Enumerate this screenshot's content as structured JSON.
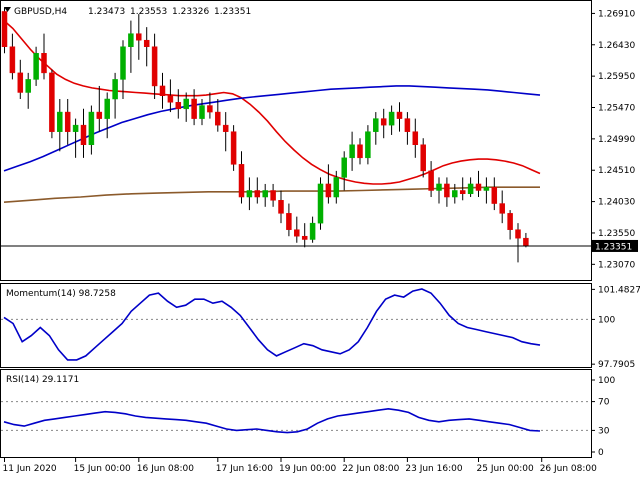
{
  "chart_data": {
    "type": "candlestick",
    "header": {
      "symbol": "GBPUSD,H4",
      "open": "1.23473",
      "high": "1.23553",
      "low": "1.23326",
      "close": "1.23351"
    },
    "price_axis": {
      "ticks": [
        "1.26910",
        "1.26430",
        "1.25950",
        "1.25470",
        "1.24990",
        "1.24510",
        "1.24030",
        "1.23550",
        "1.23070"
      ],
      "range": [
        1.2283,
        1.271
      ],
      "current_price_label": "1.23351",
      "current_price": 1.23351
    },
    "time_axis": {
      "labels": [
        "11 Jun 2020",
        "15 Jun 00:00",
        "16 Jun 08:00",
        "17 Jun 16:00",
        "19 Jun 00:00",
        "22 Jun 08:00",
        "23 Jun 16:00",
        "25 Jun 00:00",
        "26 Jun 08:00"
      ],
      "label_bar_index": [
        0,
        9,
        17,
        27,
        35,
        43,
        51,
        60,
        68
      ]
    },
    "candles": [
      [
        1.2694,
        1.27,
        1.263,
        1.264
      ],
      [
        1.264,
        1.266,
        1.259,
        1.26
      ],
      [
        1.26,
        1.262,
        1.256,
        1.257
      ],
      [
        1.257,
        1.26,
        1.2545,
        1.259
      ],
      [
        1.259,
        1.264,
        1.258,
        1.263
      ],
      [
        1.263,
        1.266,
        1.259,
        1.26
      ],
      [
        1.26,
        1.2605,
        1.25,
        1.251
      ],
      [
        1.251,
        1.256,
        1.248,
        1.254
      ],
      [
        1.254,
        1.256,
        1.249,
        1.251
      ],
      [
        1.251,
        1.253,
        1.247,
        1.252
      ],
      [
        1.252,
        1.2545,
        1.247,
        1.249
      ],
      [
        1.249,
        1.255,
        1.2475,
        1.254
      ],
      [
        1.254,
        1.258,
        1.251,
        1.253
      ],
      [
        1.253,
        1.257,
        1.25,
        1.256
      ],
      [
        1.256,
        1.26,
        1.253,
        1.259
      ],
      [
        1.259,
        1.265,
        1.256,
        1.264
      ],
      [
        1.264,
        1.268,
        1.26,
        1.266
      ],
      [
        1.266,
        1.269,
        1.262,
        1.265
      ],
      [
        1.265,
        1.267,
        1.261,
        1.264
      ],
      [
        1.264,
        1.266,
        1.256,
        1.258
      ],
      [
        1.258,
        1.26,
        1.2545,
        1.2565
      ],
      [
        1.2565,
        1.259,
        1.254,
        1.2555
      ],
      [
        1.2555,
        1.2575,
        1.253,
        1.2545
      ],
      [
        1.2545,
        1.257,
        1.2525,
        1.256
      ],
      [
        1.256,
        1.2575,
        1.252,
        1.253
      ],
      [
        1.253,
        1.256,
        1.252,
        1.255
      ],
      [
        1.255,
        1.257,
        1.253,
        1.254
      ],
      [
        1.254,
        1.256,
        1.251,
        1.252
      ],
      [
        1.252,
        1.254,
        1.248,
        1.251
      ],
      [
        1.251,
        1.252,
        1.245,
        1.246
      ],
      [
        1.246,
        1.248,
        1.24,
        1.241
      ],
      [
        1.241,
        1.244,
        1.239,
        1.242
      ],
      [
        1.242,
        1.244,
        1.24,
        1.241
      ],
      [
        1.241,
        1.243,
        1.2395,
        1.242
      ],
      [
        1.242,
        1.243,
        1.2395,
        1.2405
      ],
      [
        1.2405,
        1.242,
        1.237,
        1.2385
      ],
      [
        1.2385,
        1.24,
        1.235,
        1.236
      ],
      [
        1.236,
        1.238,
        1.234,
        1.235
      ],
      [
        1.235,
        1.237,
        1.2333,
        1.2345
      ],
      [
        1.2345,
        1.238,
        1.234,
        1.237
      ],
      [
        1.237,
        1.244,
        1.236,
        1.243
      ],
      [
        1.243,
        1.246,
        1.24,
        1.241
      ],
      [
        1.241,
        1.245,
        1.24,
        1.244
      ],
      [
        1.244,
        1.248,
        1.242,
        1.247
      ],
      [
        1.247,
        1.251,
        1.245,
        1.249
      ],
      [
        1.249,
        1.25,
        1.246,
        1.247
      ],
      [
        1.247,
        1.252,
        1.246,
        1.251
      ],
      [
        1.251,
        1.254,
        1.249,
        1.253
      ],
      [
        1.253,
        1.2545,
        1.25,
        1.252
      ],
      [
        1.252,
        1.255,
        1.2505,
        1.254
      ],
      [
        1.254,
        1.2555,
        1.251,
        1.253
      ],
      [
        1.253,
        1.254,
        1.249,
        1.251
      ],
      [
        1.251,
        1.253,
        1.247,
        1.249
      ],
      [
        1.249,
        1.25,
        1.244,
        1.245
      ],
      [
        1.245,
        1.2465,
        1.241,
        1.242
      ],
      [
        1.242,
        1.244,
        1.24,
        1.243
      ],
      [
        1.243,
        1.244,
        1.2395,
        1.241
      ],
      [
        1.241,
        1.243,
        1.24,
        1.242
      ],
      [
        1.242,
        1.244,
        1.2405,
        1.2415
      ],
      [
        1.2415,
        1.244,
        1.241,
        1.243
      ],
      [
        1.243,
        1.245,
        1.241,
        1.242
      ],
      [
        1.242,
        1.244,
        1.24,
        1.2425
      ],
      [
        1.2425,
        1.244,
        1.239,
        1.24
      ],
      [
        1.24,
        1.242,
        1.237,
        1.2385
      ],
      [
        1.2385,
        1.239,
        1.2345,
        1.236
      ],
      [
        1.236,
        1.237,
        1.231,
        1.2347
      ],
      [
        1.2347,
        1.2355,
        1.2333,
        1.2335
      ]
    ],
    "overlays": [
      {
        "color": "#e00000",
        "values": [
          1.268,
          1.2668,
          1.2652,
          1.2636,
          1.2622,
          1.261,
          1.2598,
          1.259,
          1.2584,
          1.258,
          1.2577,
          1.2575,
          1.2573,
          1.2572,
          1.2571,
          1.257,
          1.2569,
          1.2568,
          1.2567,
          1.2566,
          1.2565,
          1.2565,
          1.2565,
          1.2566,
          1.2568,
          1.257,
          1.2568,
          1.2562,
          1.2552,
          1.254,
          1.2526,
          1.251,
          1.2495,
          1.2482,
          1.247,
          1.246,
          1.2452,
          1.2445,
          1.244,
          1.2436,
          1.2433,
          1.2431,
          1.243,
          1.243,
          1.2431,
          1.2433,
          1.2437,
          1.2441,
          1.2446,
          1.2452,
          1.2458,
          1.2462,
          1.2465,
          1.2467,
          1.2468,
          1.2468,
          1.2467,
          1.2465,
          1.2462,
          1.2458,
          1.2452,
          1.2446
        ]
      },
      {
        "color": "#0000c8",
        "values": [
          1.245,
          1.2457,
          1.2464,
          1.2472,
          1.2481,
          1.249,
          1.2499,
          1.2508,
          1.2516,
          1.2524,
          1.253,
          1.2536,
          1.2541,
          1.2545,
          1.2549,
          1.2552,
          1.2555,
          1.2558,
          1.2561,
          1.2563,
          1.2565,
          1.2567,
          1.2569,
          1.2571,
          1.2573,
          1.2575,
          1.2576,
          1.2577,
          1.2578,
          1.2579,
          1.258,
          1.258,
          1.2579,
          1.2578,
          1.2577,
          1.2576,
          1.2575,
          1.2574,
          1.2572,
          1.257,
          1.2568,
          1.2566
        ]
      },
      {
        "color": "#8b5a2b",
        "values": [
          1.2402,
          1.2405,
          1.2408,
          1.241,
          1.2413,
          1.2415,
          1.2416,
          1.2417,
          1.2418,
          1.2418,
          1.2418,
          1.2419,
          1.2419,
          1.2419,
          1.242,
          1.2421,
          1.2422,
          1.2423,
          1.2424,
          1.2425,
          1.2425,
          1.2425
        ]
      }
    ],
    "momentum": {
      "label": "Momentum(14) 98.7258",
      "ticks": [
        "101.4827",
        "100",
        "97.7905"
      ],
      "range": [
        97.7,
        101.6
      ],
      "level_line": 100,
      "color": "#0000c8",
      "values": [
        100.1,
        99.8,
        98.9,
        99.2,
        99.6,
        99.2,
        98.5,
        98.0,
        98.0,
        98.2,
        98.6,
        99.0,
        99.4,
        99.8,
        100.4,
        100.8,
        101.2,
        101.3,
        100.9,
        100.6,
        100.7,
        101.0,
        101.0,
        100.8,
        100.9,
        100.6,
        100.2,
        99.6,
        99.0,
        98.5,
        98.2,
        98.4,
        98.6,
        98.8,
        98.7,
        98.5,
        98.4,
        98.3,
        98.5,
        98.9,
        99.6,
        100.4,
        101.0,
        101.2,
        101.1,
        101.4,
        101.5,
        101.3,
        100.8,
        100.2,
        99.8,
        99.6,
        99.5,
        99.4,
        99.3,
        99.2,
        99.1,
        98.9,
        98.8,
        98.73
      ]
    },
    "rsi": {
      "label": "RSI(14) 29.1171",
      "ticks": [
        "100",
        "70",
        "30",
        "0"
      ],
      "range": [
        0,
        100
      ],
      "level_lines": [
        70,
        30
      ],
      "color": "#0000c8",
      "values": [
        42,
        38,
        36,
        40,
        44,
        46,
        48,
        50,
        52,
        54,
        56,
        55,
        53,
        50,
        48,
        47,
        46,
        45,
        44,
        42,
        40,
        36,
        32,
        30,
        31,
        32,
        30,
        28,
        27,
        28,
        32,
        40,
        46,
        50,
        52,
        54,
        56,
        58,
        60,
        58,
        55,
        48,
        44,
        42,
        44,
        45,
        46,
        44,
        42,
        40,
        38,
        34,
        30,
        29.12
      ]
    }
  }
}
